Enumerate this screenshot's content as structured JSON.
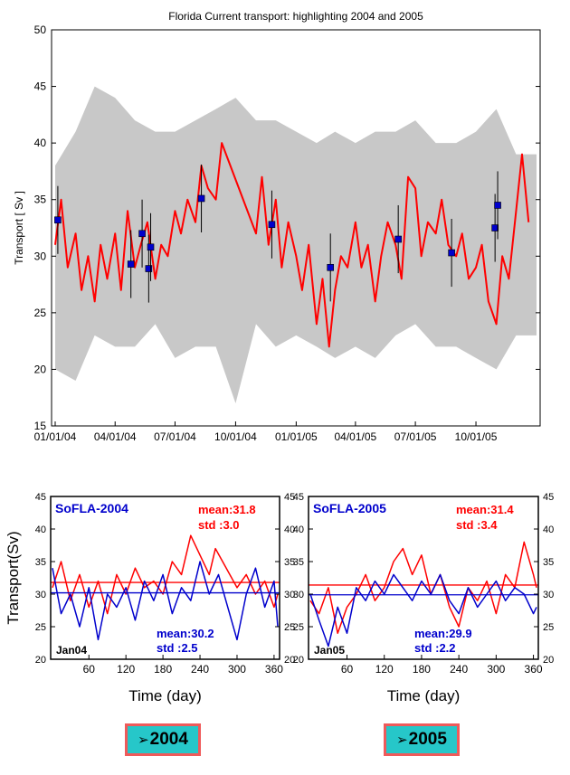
{
  "chart_data": [
    {
      "type": "line",
      "title": "Florida Current transport: highlighting 2004 and 2005",
      "xlabel": "",
      "ylabel": "Transport [ Sv ]",
      "ylim": [
        15,
        50
      ],
      "yticks": [
        15,
        20,
        25,
        30,
        35,
        40,
        45,
        50
      ],
      "x_tick_labels": [
        "01/01/04",
        "04/01/04",
        "07/01/04",
        "10/01/04",
        "01/01/05",
        "04/01/05",
        "07/01/05",
        "10/01/05"
      ],
      "colors": {
        "envelope": "#c8c8c8",
        "series": "#ff0000",
        "markers": "#0000cc"
      },
      "series": [
        {
          "role": "envelope",
          "x": [
            "2004-01-01",
            "2004-02-01",
            "2004-03-01",
            "2004-04-01",
            "2004-05-01",
            "2004-06-01",
            "2004-07-01",
            "2004-08-01",
            "2004-09-01",
            "2004-10-01",
            "2004-11-01",
            "2004-12-01",
            "2005-01-01",
            "2005-02-01",
            "2005-03-01",
            "2005-04-01",
            "2005-05-01",
            "2005-06-01",
            "2005-07-01",
            "2005-08-01",
            "2005-09-01",
            "2005-10-01",
            "2005-11-01",
            "2005-12-01"
          ],
          "upper": [
            38,
            41,
            45,
            44,
            42,
            41,
            41,
            42,
            43,
            44,
            42,
            42,
            41,
            40,
            41,
            40,
            41,
            41,
            42,
            40,
            40,
            41,
            43,
            39
          ],
          "lower": [
            20,
            19,
            23,
            22,
            22,
            24,
            21,
            22,
            22,
            17,
            24,
            22,
            23,
            22,
            21,
            22,
            21,
            23,
            24,
            22,
            22,
            21,
            20,
            23
          ]
        },
        {
          "role": "daily",
          "x": [
            "2004-01-01",
            "2004-01-10",
            "2004-01-20",
            "2004-02-01",
            "2004-02-10",
            "2004-02-20",
            "2004-03-01",
            "2004-03-10",
            "2004-03-20",
            "2004-04-01",
            "2004-04-10",
            "2004-04-20",
            "2004-05-01",
            "2004-05-10",
            "2004-05-20",
            "2004-06-01",
            "2004-06-10",
            "2004-06-20",
            "2004-07-01",
            "2004-07-10",
            "2004-07-20",
            "2004-08-01",
            "2004-08-10",
            "2004-08-20",
            "2004-09-01",
            "2004-09-10",
            "2004-11-01",
            "2004-11-10",
            "2004-11-20",
            "2004-12-01",
            "2004-12-10",
            "2004-12-20",
            "2005-01-01",
            "2005-01-10",
            "2005-01-20",
            "2005-02-01",
            "2005-02-10",
            "2005-02-20",
            "2005-03-01",
            "2005-03-10",
            "2005-03-20",
            "2005-04-01",
            "2005-04-10",
            "2005-04-20",
            "2005-05-01",
            "2005-05-10",
            "2005-05-20",
            "2005-06-01",
            "2005-06-10",
            "2005-06-20",
            "2005-07-01",
            "2005-07-10",
            "2005-07-20",
            "2005-08-01",
            "2005-08-10",
            "2005-08-20",
            "2005-09-01",
            "2005-09-10",
            "2005-09-20",
            "2005-10-01",
            "2005-10-10",
            "2005-10-20",
            "2005-11-01",
            "2005-11-10",
            "2005-11-20",
            "2005-12-01",
            "2005-12-10",
            "2005-12-20"
          ],
          "y": [
            31,
            35,
            29,
            32,
            27,
            30,
            26,
            31,
            28,
            32,
            27,
            34,
            29,
            31,
            33,
            28,
            31,
            30,
            34,
            32,
            35,
            33,
            38,
            36,
            35,
            40,
            32,
            37,
            31,
            35,
            29,
            33,
            30,
            27,
            31,
            24,
            28,
            22,
            27,
            30,
            29,
            33,
            29,
            31,
            26,
            30,
            33,
            31,
            28,
            37,
            36,
            30,
            33,
            32,
            35,
            31,
            30,
            32,
            28,
            29,
            31,
            26,
            24,
            30,
            28,
            34,
            39,
            33
          ]
        }
      ],
      "markers": [
        {
          "x": "2004-01-05",
          "y": 33.2,
          "error": 3.0
        },
        {
          "x": "2004-04-25",
          "y": 29.3,
          "error": 3.0
        },
        {
          "x": "2004-05-12",
          "y": 32.0,
          "error": 3.0
        },
        {
          "x": "2004-05-22",
          "y": 28.9,
          "error": 3.0
        },
        {
          "x": "2004-05-25",
          "y": 30.8,
          "error": 3.0
        },
        {
          "x": "2004-08-10",
          "y": 35.1,
          "error": 3.0
        },
        {
          "x": "2004-11-25",
          "y": 32.8,
          "error": 3.0
        },
        {
          "x": "2005-02-22",
          "y": 29.0,
          "error": 3.0
        },
        {
          "x": "2005-06-05",
          "y": 31.5,
          "error": 3.0
        },
        {
          "x": "2005-08-25",
          "y": 30.3,
          "error": 3.0
        },
        {
          "x": "2005-10-30",
          "y": 32.5,
          "error": 3.0
        },
        {
          "x": "2005-11-03",
          "y": 34.5,
          "error": 3.0
        }
      ]
    },
    {
      "type": "line",
      "title": "",
      "panel_label": "SoFLA-2004",
      "corner_label": "Jan04",
      "xlabel": "Time (day)",
      "ylabel": "Transport(Sv)",
      "ylim": [
        20,
        45
      ],
      "yticks": [
        20,
        25,
        30,
        35,
        40,
        45
      ],
      "xlim": [
        1,
        366
      ],
      "xticks": [
        60,
        120,
        180,
        240,
        300,
        360
      ],
      "annotations": {
        "red_mean": "mean:31.8",
        "red_std": "std :3.0",
        "blue_mean": "mean:30.2",
        "blue_std": "std :2.5"
      },
      "series": [
        {
          "color": "#ff0000",
          "mean": 31.8,
          "x": [
            1,
            15,
            30,
            45,
            60,
            75,
            90,
            105,
            120,
            135,
            150,
            165,
            180,
            195,
            210,
            225,
            240,
            255,
            265,
            300,
            315,
            330,
            345,
            360,
            366
          ],
          "y": [
            31,
            35,
            29,
            33,
            28,
            32,
            27,
            33,
            30,
            34,
            31,
            32,
            30,
            35,
            33,
            39,
            36,
            33,
            37,
            31,
            33,
            30,
            32,
            28,
            30
          ]
        },
        {
          "color": "#0000cc",
          "mean": 30.2,
          "x": [
            1,
            15,
            30,
            45,
            60,
            75,
            90,
            105,
            120,
            135,
            150,
            165,
            180,
            195,
            210,
            225,
            240,
            255,
            270,
            285,
            300,
            315,
            330,
            345,
            360,
            366
          ],
          "y": [
            34,
            27,
            30,
            25,
            31,
            23,
            30,
            28,
            31,
            26,
            32,
            29,
            33,
            27,
            31,
            29,
            35,
            30,
            33,
            28,
            23,
            30,
            34,
            28,
            32,
            25
          ]
        }
      ]
    },
    {
      "type": "line",
      "title": "",
      "panel_label": "SoFLA-2005",
      "corner_label": "Jan05",
      "xlabel": "Time (day)",
      "ylabel": "",
      "ylim": [
        20,
        45
      ],
      "yticks": [
        20,
        25,
        30,
        35,
        40,
        45
      ],
      "xlim": [
        1,
        365
      ],
      "xticks": [
        60,
        120,
        180,
        240,
        300,
        360
      ],
      "annotations": {
        "red_mean": "mean:31.4",
        "red_std": "std :3.4",
        "blue_mean": "mean:29.9",
        "blue_std": "std :2.2"
      },
      "series": [
        {
          "color": "#ff0000",
          "mean": 31.4,
          "x": [
            1,
            15,
            30,
            45,
            60,
            75,
            90,
            105,
            120,
            135,
            150,
            165,
            180,
            195,
            210,
            225,
            240,
            255,
            270,
            285,
            300,
            315,
            330,
            345,
            360,
            365
          ],
          "y": [
            29,
            27,
            31,
            24,
            28,
            30,
            33,
            29,
            31,
            35,
            37,
            33,
            36,
            30,
            33,
            28,
            25,
            31,
            29,
            32,
            27,
            33,
            31,
            38,
            33,
            31
          ]
        },
        {
          "color": "#0000cc",
          "mean": 29.9,
          "x": [
            1,
            15,
            30,
            45,
            60,
            75,
            90,
            105,
            120,
            135,
            150,
            165,
            180,
            195,
            210,
            225,
            240,
            255,
            270,
            285,
            300,
            315,
            330,
            345,
            360,
            365
          ],
          "y": [
            30,
            26,
            22,
            28,
            24,
            31,
            29,
            32,
            30,
            33,
            31,
            29,
            32,
            30,
            33,
            29,
            27,
            31,
            28,
            30,
            32,
            29,
            31,
            30,
            27,
            28
          ]
        }
      ]
    }
  ],
  "buttons": [
    {
      "label": "2004"
    },
    {
      "label": "2005"
    }
  ]
}
